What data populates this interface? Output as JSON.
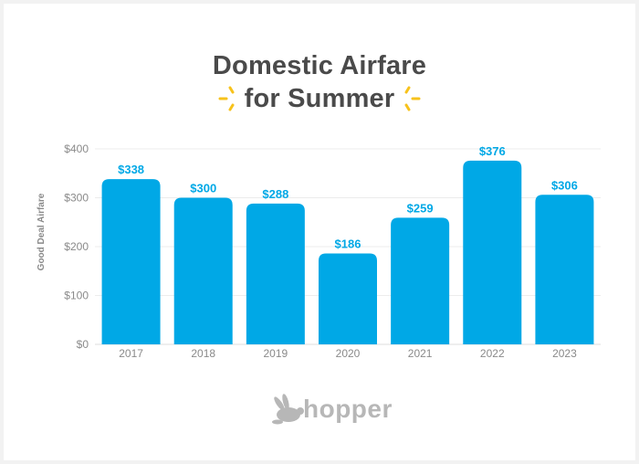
{
  "title": {
    "line1": "Domestic Airfare",
    "line2": "for Summer"
  },
  "brand": {
    "logo_text": "hopper"
  },
  "colors": {
    "bar": "#00a8e6",
    "label": "#00a8e6",
    "axis_text": "#8a8a8a",
    "title": "#4a4a4a",
    "sparkle": "#f7c21b",
    "logo": "#b7b7b7"
  },
  "chart_data": {
    "type": "bar",
    "categories": [
      "2017",
      "2018",
      "2019",
      "2020",
      "2021",
      "2022",
      "2023"
    ],
    "values": [
      338,
      300,
      288,
      186,
      259,
      376,
      306
    ],
    "value_labels": [
      "$338",
      "$300",
      "$288",
      "$186",
      "$259",
      "$376",
      "$306"
    ],
    "ylabel": "Good Deal Airfare",
    "xlabel": "",
    "ylim": [
      0,
      400
    ],
    "yticks": [
      0,
      100,
      200,
      300,
      400
    ],
    "ytick_labels": [
      "$0",
      "$100",
      "$200",
      "$300",
      "$400"
    ],
    "grid": true,
    "legend": "none"
  }
}
